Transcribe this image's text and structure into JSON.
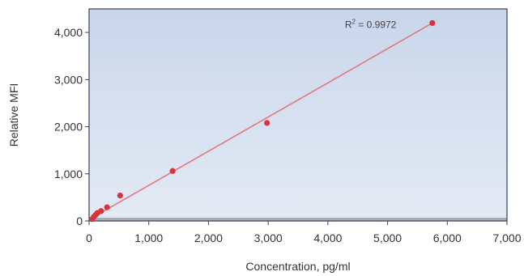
{
  "chart_data": {
    "type": "scatter",
    "xlabel": "Concentration, pg/ml",
    "ylabel": "Relative MFI",
    "xlim": [
      0,
      7000
    ],
    "ylim": [
      0,
      4500
    ],
    "x_ticks": [
      0,
      1000,
      2000,
      3000,
      4000,
      5000,
      6000,
      7000
    ],
    "x_tick_labels": [
      "0",
      "1,000",
      "2,000",
      "3,000",
      "4,000",
      "5,000",
      "6,000",
      "7,000"
    ],
    "y_ticks": [
      0,
      1000,
      2000,
      3000,
      4000
    ],
    "y_tick_labels": [
      "0",
      "1,000",
      "2,000",
      "3,000",
      "4,000"
    ],
    "grid": false,
    "series": [
      {
        "x": [
          50,
          80,
          110,
          140,
          200,
          300,
          520,
          1400,
          2980,
          5750
        ],
        "y": [
          40,
          90,
          130,
          170,
          210,
          290,
          540,
          1060,
          2080,
          4200
        ]
      }
    ],
    "trendline": {
      "x": [
        0,
        5750
      ],
      "y": [
        30,
        4200
      ]
    },
    "annotation": {
      "text_main": "R",
      "text_sup": "2",
      "text_rest": " = 0.9972"
    },
    "colors": {
      "points": "#d9333f",
      "trendline": "#e07a85",
      "plot_bg_top": "#c9d6ea",
      "plot_bg_bottom": "#e3eaf4",
      "frame": "#3a4350",
      "baseline_band": "#a7adb5"
    }
  }
}
